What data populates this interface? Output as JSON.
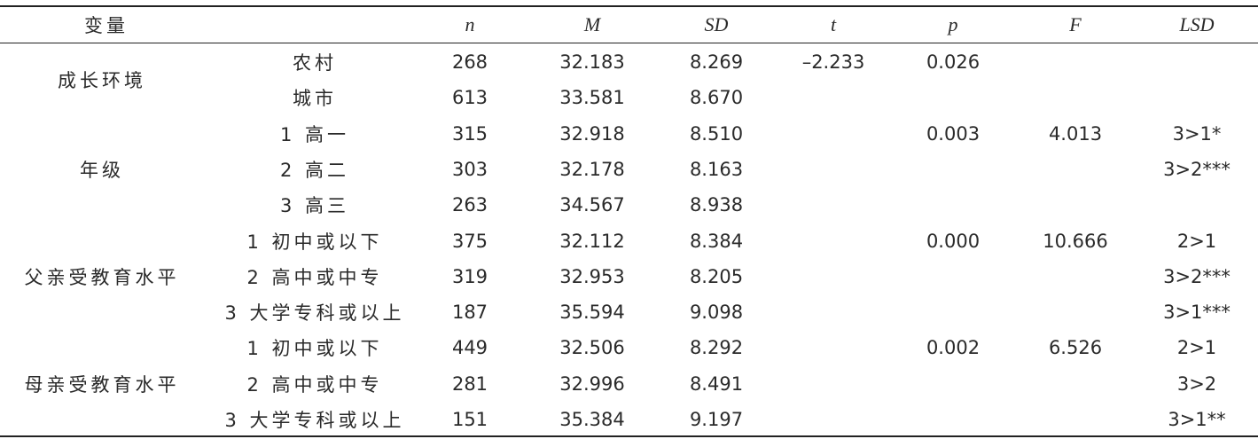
{
  "table": {
    "header": [
      "变量",
      "n",
      "M",
      "SD",
      "t",
      "p",
      "F",
      "LSD"
    ],
    "groups": [
      {
        "label": "成长环境",
        "rows": [
          [
            "农村",
            "268",
            "32.183",
            "8.269",
            "–2.233",
            "0.026",
            null,
            null
          ],
          [
            "城市",
            "613",
            "33.581",
            "8.670",
            null,
            null,
            null,
            null
          ]
        ]
      },
      {
        "label": "年级",
        "rows": [
          [
            "1 高一",
            "315",
            "32.918",
            "8.510",
            null,
            "0.003",
            "4.013",
            "3>1*"
          ],
          [
            "2 高二",
            "303",
            "32.178",
            "8.163",
            null,
            null,
            null,
            "3>2***"
          ],
          [
            "3 高三",
            "263",
            "34.567",
            "8.938",
            null,
            null,
            null,
            null
          ]
        ]
      },
      {
        "label": "父亲受教育水平",
        "rows": [
          [
            "1 初中或以下",
            "375",
            "32.112",
            "8.384",
            null,
            "0.000",
            "10.666",
            "2>1"
          ],
          [
            "2 高中或中专",
            "319",
            "32.953",
            "8.205",
            null,
            null,
            null,
            "3>2***"
          ],
          [
            "3 大学专科或以上",
            "187",
            "35.594",
            "9.098",
            null,
            null,
            null,
            "3>1***"
          ]
        ]
      },
      {
        "label": "母亲受教育水平",
        "rows": [
          [
            "1 初中或以下",
            "449",
            "32.506",
            "8.292",
            null,
            "0.002",
            "6.526",
            "2>1"
          ],
          [
            "2 高中或中专",
            "281",
            "32.996",
            "8.491",
            null,
            null,
            null,
            "3>2"
          ],
          [
            "3 大学专科或以上",
            "151",
            "35.384",
            "9.197",
            null,
            null,
            null,
            "3>1**"
          ]
        ]
      }
    ]
  }
}
